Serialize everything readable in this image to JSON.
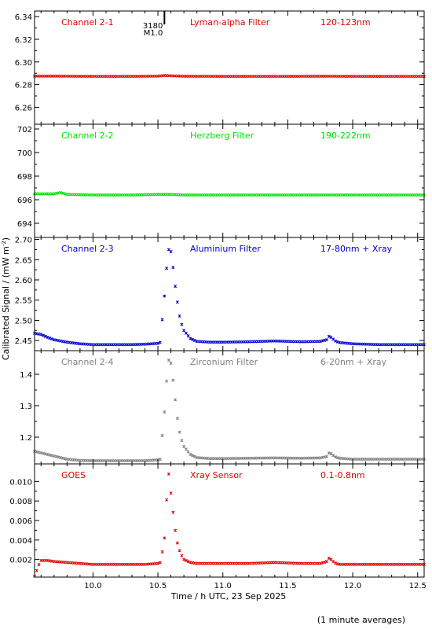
{
  "chart_data": {
    "type": "scatter",
    "ylabel": "Calibrated Signal / (mW m",
    "ylabel_sup": "-2",
    "ylabel_end": ")",
    "xlabel": "Time / h UTC, 23 Sep 2025",
    "footnote": "(1 minute averages)",
    "xlim": [
      9.55,
      12.55
    ],
    "xticks": [
      "10.0",
      "10.5",
      "11.0",
      "11.5",
      "12.0",
      "12.5"
    ],
    "xtick_values": [
      10.0,
      10.5,
      11.0,
      11.5,
      12.0,
      12.5
    ],
    "event_marker": {
      "x": 10.55,
      "label_top": "3180",
      "label_bottom": "M1.0"
    },
    "colors": {
      "axes": "#000000",
      "background": "#ffffff"
    },
    "panels": [
      {
        "channel": "Channel 2-1",
        "filter": "Lyman-alpha Filter",
        "band": "120-123nm",
        "color": "#e00000",
        "ylim": [
          6.245,
          6.345
        ],
        "yticks": [
          "6.26",
          "6.28",
          "6.30",
          "6.32",
          "6.34"
        ],
        "ytick_values": [
          6.26,
          6.28,
          6.3,
          6.32,
          6.34
        ],
        "series": [
          {
            "x": [
              9.55,
              9.7,
              10.0,
              10.3,
              10.5,
              10.55,
              10.6,
              10.7,
              11.0,
              11.5,
              11.8,
              12.0,
              12.3,
              12.55
            ],
            "y": [
              6.2875,
              6.2875,
              6.2873,
              6.2873,
              6.2875,
              6.288,
              6.2878,
              6.2874,
              6.2873,
              6.2873,
              6.2874,
              6.2873,
              6.2873,
              6.2873
            ]
          }
        ]
      },
      {
        "channel": "Channel 2-2",
        "filter": "Herzberg Filter",
        "band": "190-222nm",
        "color": "#00e000",
        "ylim": [
          692.8,
          702.4
        ],
        "yticks": [
          "694",
          "696",
          "698",
          "700",
          "702"
        ],
        "ytick_values": [
          694,
          696,
          698,
          700,
          702
        ],
        "series": [
          {
            "x": [
              9.55,
              9.7,
              9.75,
              9.8,
              10.0,
              10.3,
              10.5,
              10.6,
              10.7,
              11.0,
              11.5,
              11.8,
              12.0,
              12.3,
              12.55
            ],
            "y": [
              696.5,
              696.5,
              696.6,
              696.45,
              696.4,
              696.4,
              696.45,
              696.45,
              696.4,
              696.4,
              696.4,
              696.4,
              696.4,
              696.4,
              696.4
            ]
          }
        ]
      },
      {
        "channel": "Channel 2-3",
        "filter": "Aluminium Filter",
        "band": "17-80nm + Xray",
        "color": "#0000d0",
        "ylim": [
          2.425,
          2.705
        ],
        "yticks": [
          "2.45",
          "2.50",
          "2.55",
          "2.60",
          "2.65",
          "2.70"
        ],
        "ytick_values": [
          2.45,
          2.5,
          2.55,
          2.6,
          2.65,
          2.7
        ],
        "series": [
          {
            "x": [
              9.55,
              9.6,
              9.65,
              9.7,
              9.8,
              9.9,
              10.0,
              10.1,
              10.2,
              10.3,
              10.4,
              10.5,
              10.52,
              10.53,
              10.55,
              10.567,
              10.583,
              10.6,
              10.617,
              10.633,
              10.65,
              10.667,
              10.683,
              10.7,
              10.75,
              10.8,
              10.9,
              11.0,
              11.2,
              11.4,
              11.6,
              11.75,
              11.8,
              11.82,
              11.84,
              11.87,
              11.9,
              12.0,
              12.2,
              12.4,
              12.55
            ],
            "y": [
              2.468,
              2.465,
              2.458,
              2.452,
              2.446,
              2.442,
              2.44,
              2.44,
              2.44,
              2.44,
              2.441,
              2.443,
              2.446,
              2.49,
              2.56,
              2.63,
              2.675,
              2.67,
              2.63,
              2.585,
              2.545,
              2.51,
              2.49,
              2.475,
              2.455,
              2.448,
              2.446,
              2.446,
              2.447,
              2.449,
              2.447,
              2.448,
              2.452,
              2.462,
              2.456,
              2.448,
              2.445,
              2.442,
              2.44,
              2.44,
              2.44
            ]
          }
        ]
      },
      {
        "channel": "Channel 2-4",
        "filter": "Zirconium Filter",
        "band": "6-20nm + Xray",
        "color": "#808080",
        "ylim": [
          1.115,
          1.475
        ],
        "yticks": [
          "1.2",
          "1.3",
          "1.4"
        ],
        "ytick_values": [
          1.2,
          1.3,
          1.4
        ],
        "series": [
          {
            "x": [
              9.55,
              9.6,
              9.65,
              9.7,
              9.8,
              9.9,
              10.0,
              10.1,
              10.2,
              10.3,
              10.4,
              10.5,
              10.52,
              10.53,
              10.55,
              10.567,
              10.583,
              10.6,
              10.617,
              10.633,
              10.65,
              10.667,
              10.683,
              10.7,
              10.75,
              10.8,
              10.9,
              11.0,
              11.2,
              11.4,
              11.6,
              11.75,
              11.8,
              11.82,
              11.84,
              11.87,
              11.9,
              12.0,
              12.2,
              12.4,
              12.55
            ],
            "y": [
              1.155,
              1.15,
              1.145,
              1.14,
              1.13,
              1.126,
              1.125,
              1.125,
              1.125,
              1.125,
              1.125,
              1.128,
              1.13,
              1.19,
              1.28,
              1.38,
              1.445,
              1.435,
              1.38,
              1.32,
              1.26,
              1.215,
              1.19,
              1.17,
              1.145,
              1.135,
              1.132,
              1.132,
              1.133,
              1.134,
              1.133,
              1.134,
              1.138,
              1.152,
              1.145,
              1.136,
              1.133,
              1.13,
              1.13,
              1.13,
              1.13
            ]
          }
        ]
      },
      {
        "channel": "GOES",
        "filter": "Xray Sensor",
        "band": "0.1-0.8nm",
        "color": "#e00000",
        "ylim": [
          0.0002,
          0.0118
        ],
        "yticks": [
          "0.002",
          "0.004",
          "0.006",
          "0.008",
          "0.010"
        ],
        "ytick_values": [
          0.002,
          0.004,
          0.006,
          0.008,
          0.01
        ],
        "series": [
          {
            "x": [
              9.55,
              9.56,
              9.57,
              9.58,
              9.6,
              9.65,
              9.7,
              9.8,
              9.9,
              10.0,
              10.1,
              10.2,
              10.3,
              10.4,
              10.5,
              10.52,
              10.53,
              10.55,
              10.567,
              10.583,
              10.6,
              10.617,
              10.633,
              10.65,
              10.667,
              10.683,
              10.7,
              10.75,
              10.8,
              10.9,
              11.0,
              11.2,
              11.4,
              11.6,
              11.75,
              11.8,
              11.82,
              11.84,
              11.87,
              11.9,
              12.0,
              12.2,
              12.4,
              12.55
            ],
            "y": [
              0.0003,
              0.0006,
              0.001,
              0.0014,
              0.0019,
              0.0019,
              0.0018,
              0.0017,
              0.0016,
              0.0015,
              0.0015,
              0.0015,
              0.0015,
              0.0015,
              0.0016,
              0.0017,
              0.0025,
              0.0042,
              0.0082,
              0.0108,
              0.0088,
              0.0068,
              0.005,
              0.0037,
              0.0029,
              0.0024,
              0.002,
              0.0017,
              0.0016,
              0.0016,
              0.0016,
              0.0016,
              0.0017,
              0.0016,
              0.0016,
              0.0018,
              0.0022,
              0.0019,
              0.0016,
              0.0015,
              0.0015,
              0.0015,
              0.0015,
              0.0015
            ]
          }
        ]
      }
    ]
  }
}
